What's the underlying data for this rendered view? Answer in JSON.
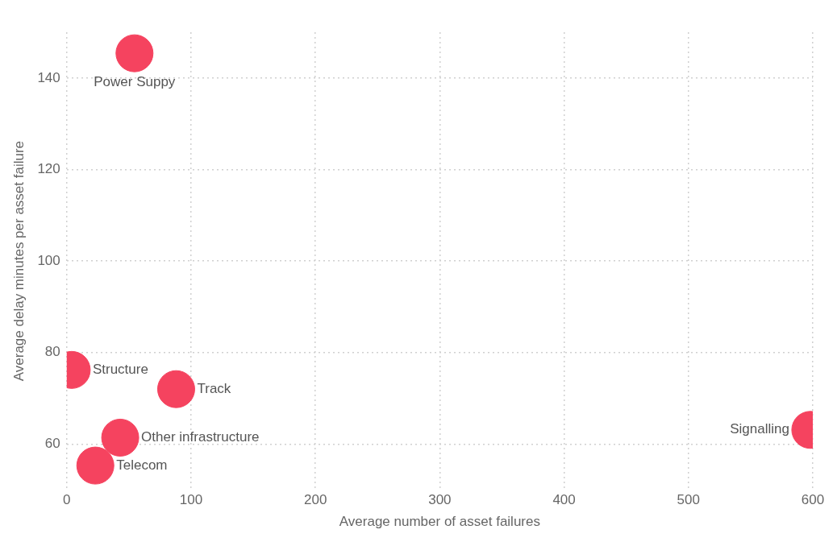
{
  "chart_data": {
    "type": "scatter",
    "xlabel": "Average number of asset failures",
    "ylabel": "Average delay minutes per asset failure",
    "x": [
      54.5,
      4,
      88,
      43,
      23,
      598
    ],
    "values": [
      145.4,
      76.2,
      72,
      61.4,
      55.3,
      63.1
    ],
    "color": "#f5435f",
    "marker": "circle",
    "xlim": [
      0,
      600
    ],
    "xticks": [
      0,
      100,
      200,
      300,
      400,
      500,
      600
    ],
    "ylim": [
      50,
      150
    ],
    "yticks": [
      60,
      80,
      100,
      120,
      140
    ],
    "grid": true,
    "annotations": [
      {
        "text": "Power Suppy",
        "x": 54.5,
        "y": 145.4
      },
      {
        "text": "Structure",
        "x": 4,
        "y": 76.2
      },
      {
        "text": "Track",
        "x": 88,
        "y": 72
      },
      {
        "text": "Other infrastructure",
        "x": 43,
        "y": 61.4
      },
      {
        "text": "Telecom",
        "x": 23,
        "y": 55.3
      },
      {
        "text": "Signalling",
        "x": 598,
        "y": 63.1
      }
    ]
  }
}
